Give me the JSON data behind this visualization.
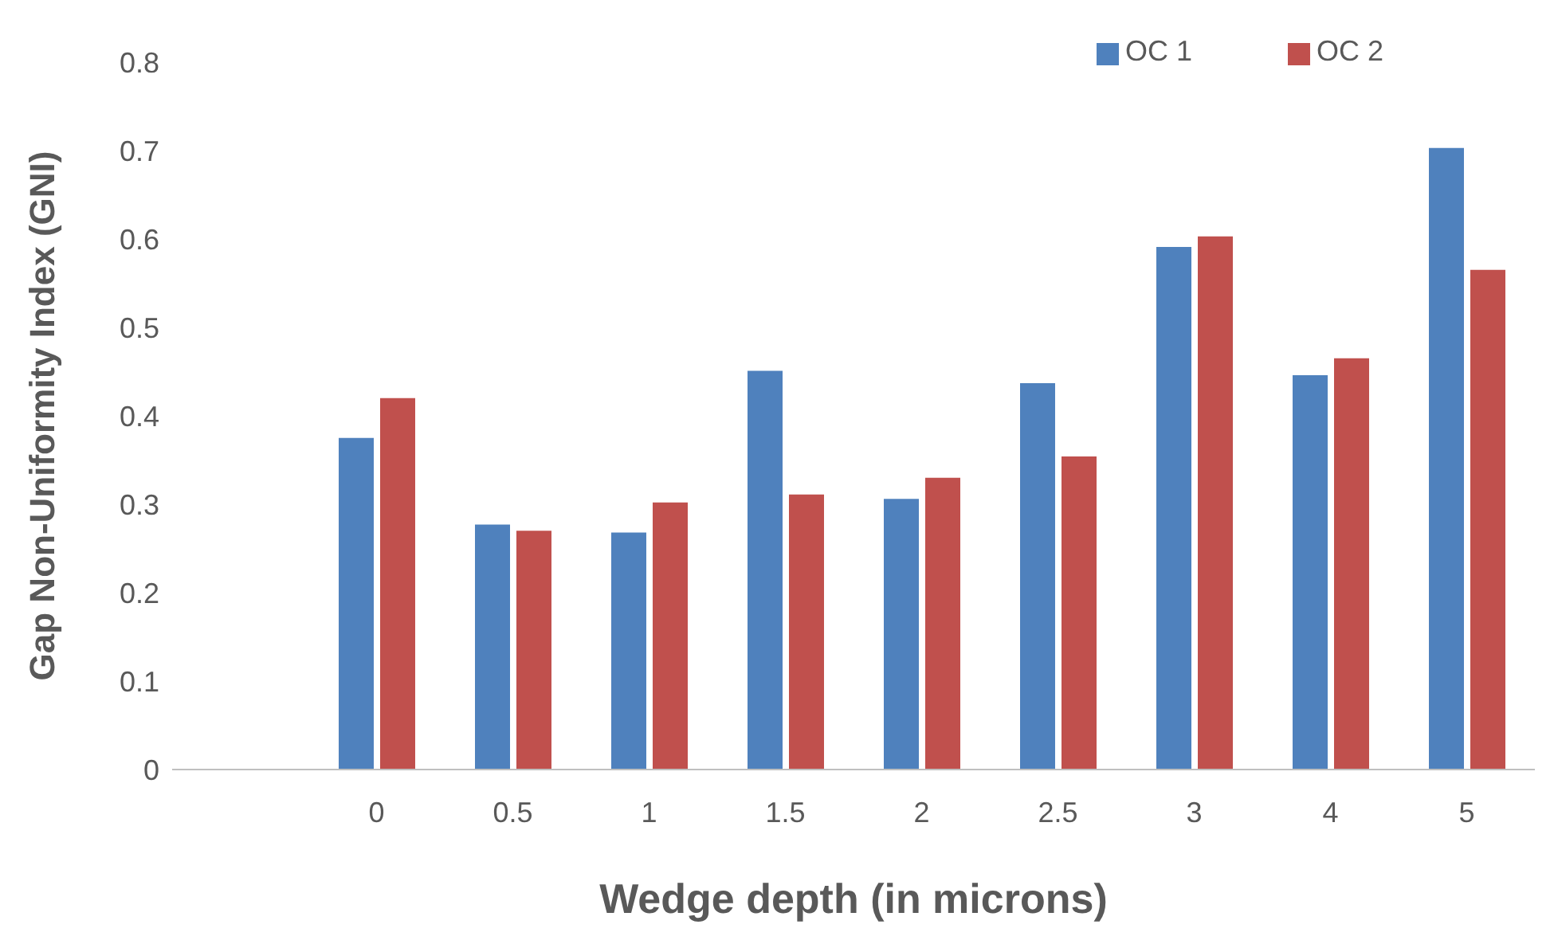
{
  "chart_data": {
    "type": "bar",
    "xlabel": "Wedge depth (in microns)",
    "ylabel": "Gap Non-Uniformity Index (GNI)",
    "categories": [
      null,
      "0",
      "0.5",
      "1",
      "1.5",
      "2",
      "2.5",
      "3",
      "4",
      "5"
    ],
    "series": [
      {
        "name": "OC 1",
        "color": "#4f81bd",
        "values": [
          null,
          0.375,
          0.277,
          0.268,
          0.451,
          0.306,
          0.437,
          0.591,
          0.446,
          0.703
        ]
      },
      {
        "name": "OC 2",
        "color": "#c0504d",
        "values": [
          null,
          0.42,
          0.27,
          0.302,
          0.311,
          0.33,
          0.354,
          0.603,
          0.465,
          0.565
        ]
      }
    ],
    "ylim": [
      0,
      0.8
    ],
    "yticks": [
      0,
      0.1,
      0.2,
      0.3,
      0.4,
      0.5,
      0.6,
      0.7,
      0.8
    ],
    "grid": false,
    "legend": "top right"
  }
}
